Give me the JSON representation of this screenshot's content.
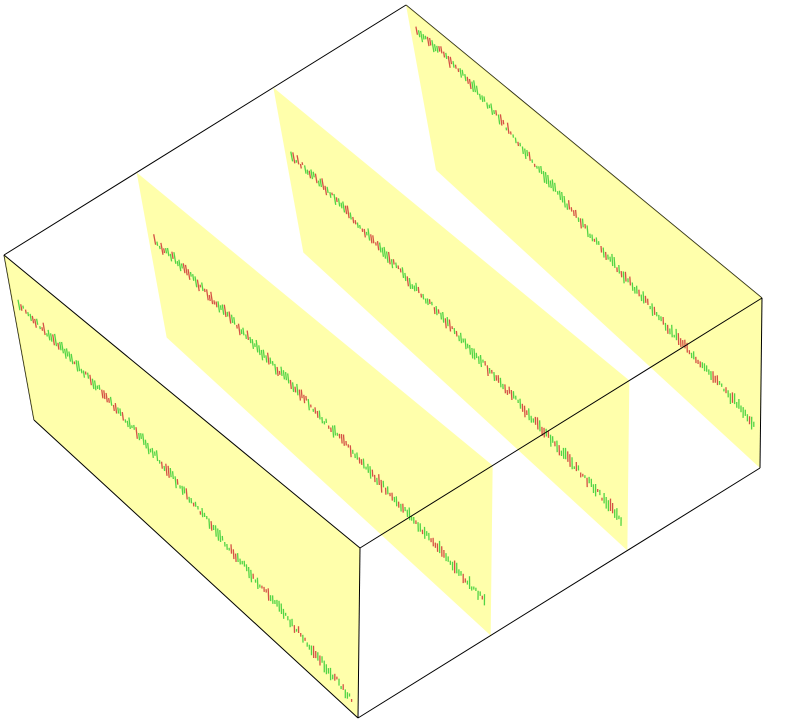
{
  "chart_data": {
    "type": "3d-candlestick-panels",
    "title": "",
    "xlabel": "",
    "ylabel": "",
    "zlabel": "",
    "colors": {
      "panel": "#ffff66",
      "box_edge": "#000000",
      "up": "#33cc33",
      "down": "#cc3333",
      "background": "#ffffff"
    },
    "panels": [
      {
        "depth": 0.0,
        "shape": [
          0.74,
          0.71,
          0.67,
          0.62,
          0.56,
          0.49,
          0.42,
          0.35,
          0.29,
          0.24,
          0.18,
          0.12,
          0.06
        ]
      },
      {
        "depth": 0.33,
        "shape": [
          0.62,
          0.61,
          0.57,
          0.53,
          0.48,
          0.45,
          0.4,
          0.36,
          0.32,
          0.28,
          0.24,
          0.2,
          0.16
        ]
      },
      {
        "depth": 0.67,
        "shape": [
          0.63,
          0.61,
          0.57,
          0.52,
          0.47,
          0.43,
          0.38,
          0.34,
          0.3,
          0.26,
          0.22,
          0.18,
          0.14
        ]
      },
      {
        "depth": 1.0,
        "shape": [
          0.88,
          0.88,
          0.83,
          0.75,
          0.66,
          0.58,
          0.5,
          0.43,
          0.38,
          0.33,
          0.3,
          0.26,
          0.22
        ]
      }
    ]
  }
}
